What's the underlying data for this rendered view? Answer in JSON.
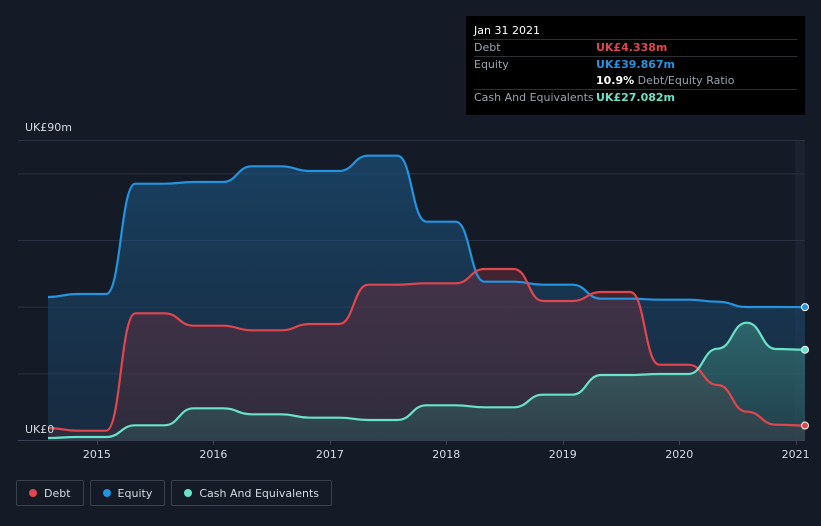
{
  "tooltip": {
    "date": "Jan 31 2021",
    "debt_label": "Debt",
    "debt_value": "UK£4.338m",
    "equity_label": "Equity",
    "equity_value": "UK£39.867m",
    "ratio_value": "10.9%",
    "ratio_label": "Debt/Equity Ratio",
    "cash_label": "Cash And Equivalents",
    "cash_value": "UK£27.082m"
  },
  "legend": {
    "debt": "Debt",
    "equity": "Equity",
    "cash": "Cash And Equivalents"
  },
  "colors": {
    "debt": "#e0464e",
    "equity": "#2493e0",
    "cash": "#69e2c9",
    "background": "#151b26"
  },
  "chart_data": {
    "type": "area",
    "title": "",
    "xlabel": "",
    "ylabel": "",
    "ylim": [
      0,
      90
    ],
    "y_tick_labels": [
      {
        "value": 90,
        "label": "UK£90m"
      },
      {
        "value": 0,
        "label": "UK£0"
      }
    ],
    "x_ticks": [
      {
        "value": 2015.0,
        "label": "2015"
      },
      {
        "value": 2016.0,
        "label": "2016"
      },
      {
        "value": 2017.0,
        "label": "2017"
      },
      {
        "value": 2018.0,
        "label": "2018"
      },
      {
        "value": 2019.0,
        "label": "2019"
      },
      {
        "value": 2020.0,
        "label": "2020"
      },
      {
        "value": 2021.0,
        "label": "2021"
      }
    ],
    "xlim": [
      2014.58,
      2021.08
    ],
    "grid": true,
    "legend_position": "bottom-left",
    "series": [
      {
        "name": "Debt",
        "color": "#e0464e",
        "points": [
          [
            2014.58,
            3.6
          ],
          [
            2014.83,
            2.8
          ],
          [
            2015.08,
            2.8
          ],
          [
            2015.33,
            38.0
          ],
          [
            2015.58,
            38.0
          ],
          [
            2015.83,
            34.3
          ],
          [
            2016.08,
            34.3
          ],
          [
            2016.33,
            32.9
          ],
          [
            2016.58,
            32.9
          ],
          [
            2016.83,
            34.8
          ],
          [
            2017.08,
            34.8
          ],
          [
            2017.33,
            46.6
          ],
          [
            2017.58,
            46.6
          ],
          [
            2017.83,
            47.0
          ],
          [
            2018.08,
            47.0
          ],
          [
            2018.33,
            51.3
          ],
          [
            2018.58,
            51.3
          ],
          [
            2018.83,
            41.7
          ],
          [
            2019.08,
            41.7
          ],
          [
            2019.33,
            44.4
          ],
          [
            2019.58,
            44.4
          ],
          [
            2019.83,
            22.6
          ],
          [
            2020.08,
            22.6
          ],
          [
            2020.33,
            16.5
          ],
          [
            2020.58,
            8.5
          ],
          [
            2020.83,
            4.6
          ],
          [
            2021.08,
            4.338
          ]
        ]
      },
      {
        "name": "Equity",
        "color": "#2493e0",
        "points": [
          [
            2014.58,
            42.9
          ],
          [
            2014.83,
            43.8
          ],
          [
            2015.08,
            43.8
          ],
          [
            2015.33,
            76.9
          ],
          [
            2015.58,
            76.9
          ],
          [
            2015.83,
            77.4
          ],
          [
            2016.08,
            77.4
          ],
          [
            2016.33,
            82.1
          ],
          [
            2016.58,
            82.1
          ],
          [
            2016.83,
            80.7
          ],
          [
            2017.08,
            80.7
          ],
          [
            2017.33,
            85.3
          ],
          [
            2017.58,
            85.3
          ],
          [
            2017.83,
            65.5
          ],
          [
            2018.08,
            65.5
          ],
          [
            2018.33,
            47.5
          ],
          [
            2018.58,
            47.5
          ],
          [
            2018.83,
            46.6
          ],
          [
            2019.08,
            46.6
          ],
          [
            2019.33,
            42.4
          ],
          [
            2019.58,
            42.4
          ],
          [
            2019.83,
            42.1
          ],
          [
            2020.08,
            42.1
          ],
          [
            2020.33,
            41.5
          ],
          [
            2020.58,
            39.9
          ],
          [
            2020.83,
            39.9
          ],
          [
            2021.08,
            39.867
          ]
        ]
      },
      {
        "name": "Cash And Equivalents",
        "color": "#69e2c9",
        "points": [
          [
            2014.58,
            0.6
          ],
          [
            2014.83,
            0.9
          ],
          [
            2015.08,
            0.9
          ],
          [
            2015.33,
            4.4
          ],
          [
            2015.58,
            4.4
          ],
          [
            2015.83,
            9.5
          ],
          [
            2016.08,
            9.5
          ],
          [
            2016.33,
            7.7
          ],
          [
            2016.58,
            7.7
          ],
          [
            2016.83,
            6.7
          ],
          [
            2017.08,
            6.7
          ],
          [
            2017.33,
            6.0
          ],
          [
            2017.58,
            6.0
          ],
          [
            2017.83,
            10.4
          ],
          [
            2018.08,
            10.4
          ],
          [
            2018.33,
            9.8
          ],
          [
            2018.58,
            9.8
          ],
          [
            2018.83,
            13.6
          ],
          [
            2019.08,
            13.6
          ],
          [
            2019.33,
            19.5
          ],
          [
            2019.58,
            19.5
          ],
          [
            2019.83,
            19.8
          ],
          [
            2020.08,
            19.8
          ],
          [
            2020.33,
            27.4
          ],
          [
            2020.58,
            35.2
          ],
          [
            2020.83,
            27.3
          ],
          [
            2021.08,
            27.082
          ]
        ]
      }
    ]
  }
}
